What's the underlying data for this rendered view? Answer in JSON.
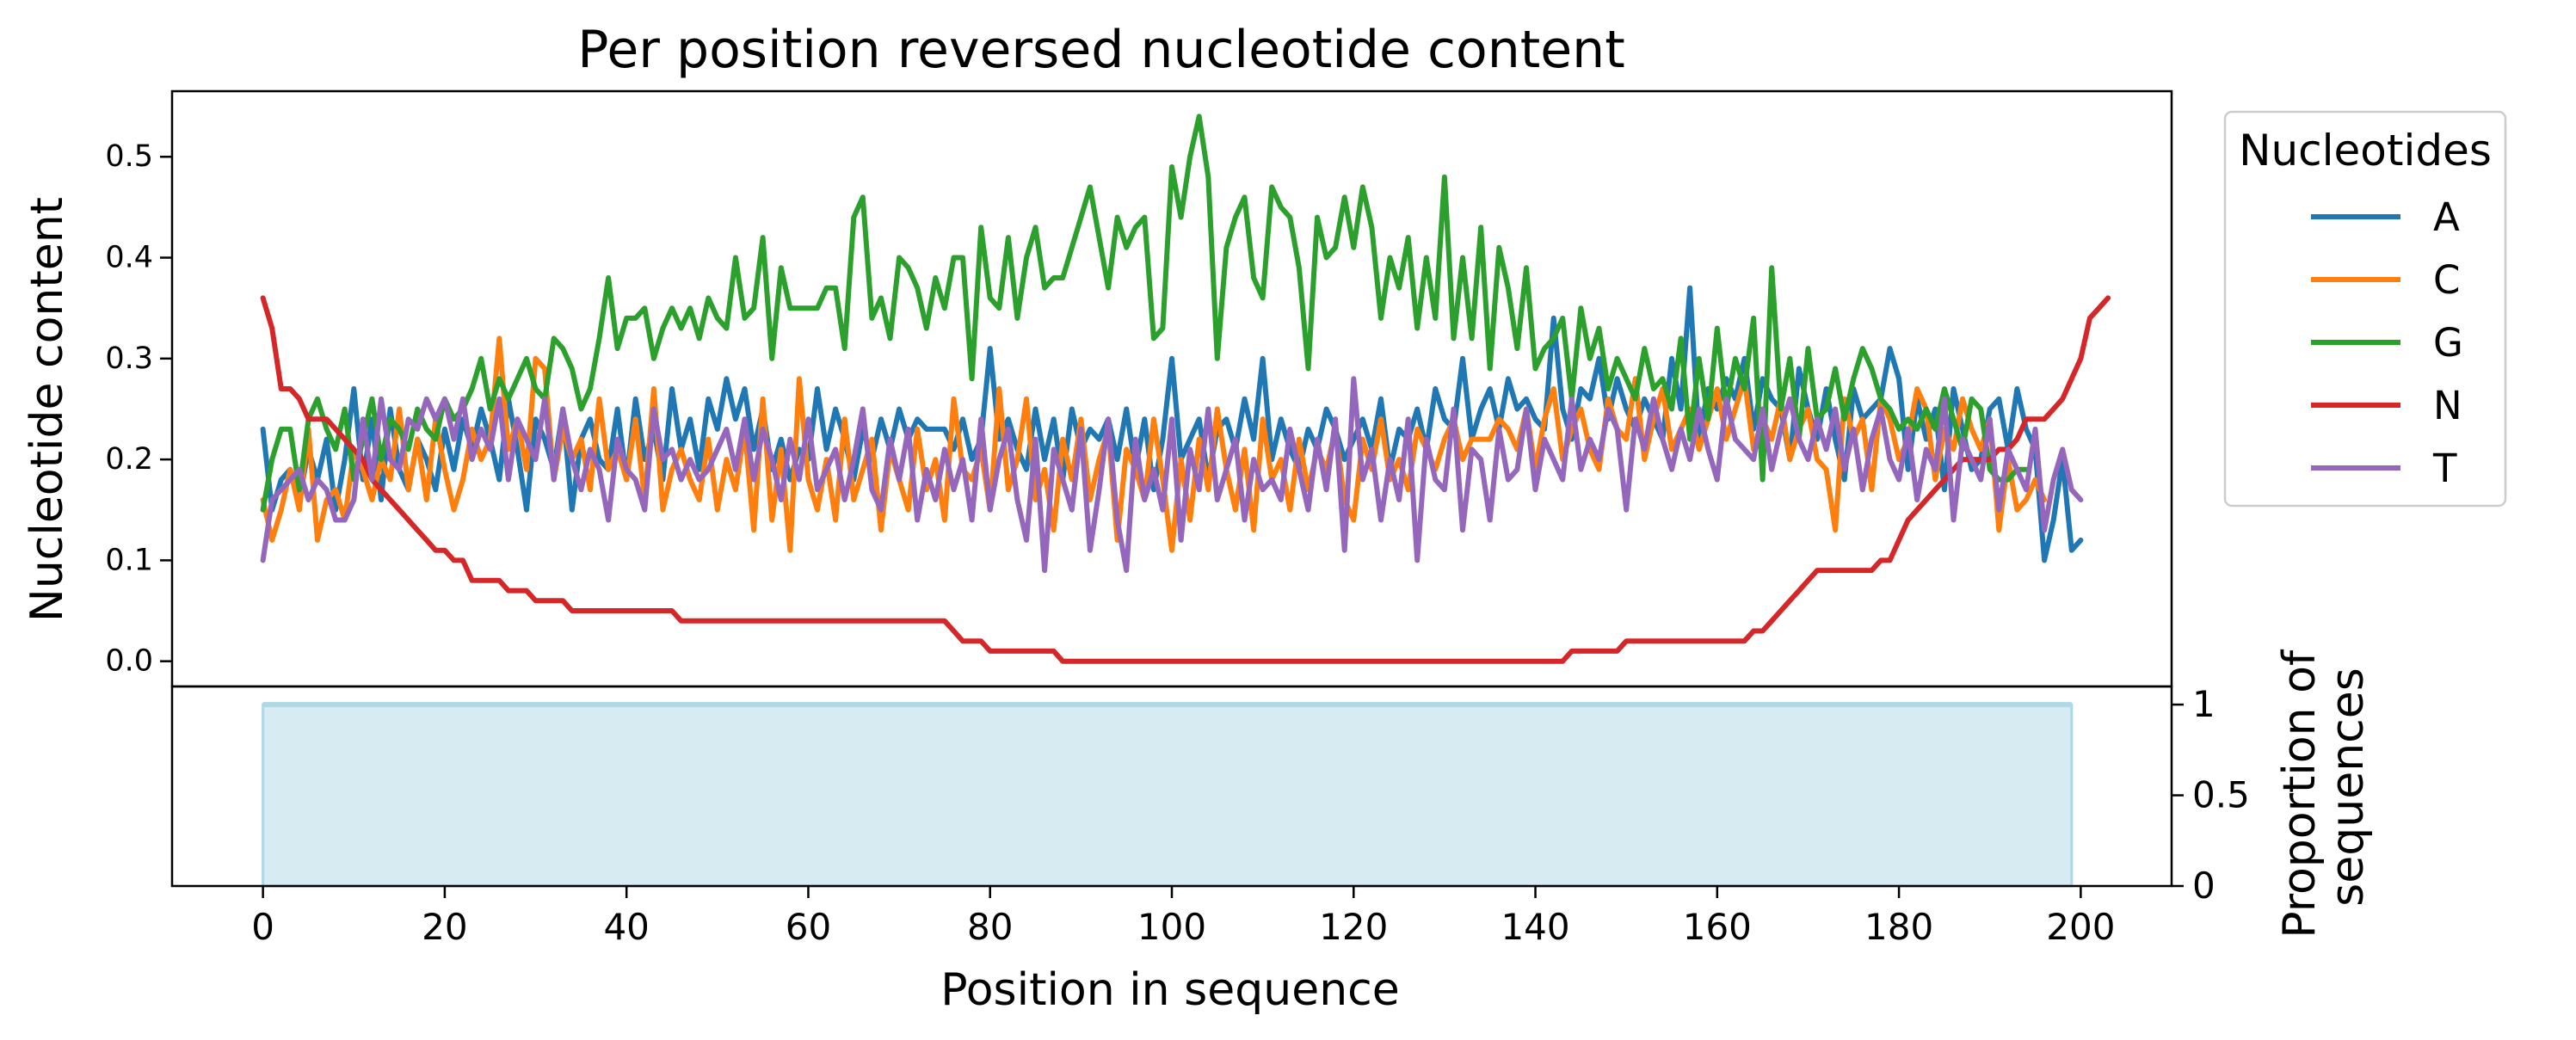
{
  "chart_data": {
    "type": "line",
    "title": "Per position reversed nucleotide content",
    "xlabel": "Position in sequence",
    "ylabel": "Nucleotide content",
    "xlim": [
      -10,
      210
    ],
    "ylim": [
      -0.025,
      0.565
    ],
    "xticks": [
      0,
      20,
      40,
      60,
      80,
      100,
      120,
      140,
      160,
      180,
      200
    ],
    "yticks": [
      "0.0",
      "0.1",
      "0.2",
      "0.3",
      "0.4",
      "0.5"
    ],
    "legend": {
      "title": "Nucleotides",
      "placement": "outside-right"
    },
    "series": [
      {
        "name": "A",
        "color": "#1f77b4",
        "values": [
          0.23,
          0.15,
          0.18,
          0.19,
          0.16,
          0.21,
          0.18,
          0.22,
          0.15,
          0.2,
          0.27,
          0.18,
          0.24,
          0.16,
          0.25,
          0.19,
          0.17,
          0.22,
          0.2,
          0.17,
          0.23,
          0.19,
          0.24,
          0.21,
          0.25,
          0.22,
          0.18,
          0.26,
          0.21,
          0.15,
          0.24,
          0.22,
          0.19,
          0.25,
          0.15,
          0.22,
          0.24,
          0.2,
          0.19,
          0.25,
          0.18,
          0.26,
          0.2,
          0.23,
          0.18,
          0.27,
          0.21,
          0.24,
          0.19,
          0.26,
          0.23,
          0.28,
          0.24,
          0.27,
          0.21,
          0.25,
          0.19,
          0.22,
          0.18,
          0.21,
          0.2,
          0.27,
          0.21,
          0.25,
          0.22,
          0.18,
          0.23,
          0.2,
          0.24,
          0.21,
          0.25,
          0.22,
          0.24,
          0.23,
          0.23,
          0.23,
          0.21,
          0.24,
          0.2,
          0.22,
          0.31,
          0.22,
          0.24,
          0.21,
          0.19,
          0.25,
          0.2,
          0.24,
          0.18,
          0.25,
          0.21,
          0.23,
          0.22,
          0.24,
          0.2,
          0.25,
          0.19,
          0.24,
          0.17,
          0.22,
          0.3,
          0.2,
          0.22,
          0.24,
          0.18,
          0.23,
          0.24,
          0.21,
          0.26,
          0.22,
          0.3,
          0.2,
          0.24,
          0.21,
          0.19,
          0.23,
          0.21,
          0.25,
          0.23,
          0.2,
          0.22,
          0.24,
          0.21,
          0.26,
          0.19,
          0.23,
          0.22,
          0.25,
          0.21,
          0.27,
          0.24,
          0.23,
          0.3,
          0.22,
          0.25,
          0.27,
          0.23,
          0.28,
          0.25,
          0.26,
          0.24,
          0.23,
          0.34,
          0.25,
          0.22,
          0.27,
          0.26,
          0.3,
          0.24,
          0.28,
          0.25,
          0.23,
          0.26,
          0.24,
          0.22,
          0.3,
          0.25,
          0.37,
          0.22,
          0.27,
          0.25,
          0.28,
          0.26,
          0.3,
          0.23,
          0.28,
          0.26,
          0.25,
          0.2,
          0.29,
          0.25,
          0.22,
          0.27,
          0.22,
          0.18,
          0.27,
          0.24,
          0.25,
          0.26,
          0.31,
          0.28,
          0.19,
          0.26,
          0.22,
          0.25,
          0.17,
          0.27,
          0.23,
          0.19,
          0.2,
          0.25,
          0.26,
          0.21,
          0.27,
          0.23,
          0.21,
          0.1,
          0.14,
          0.2,
          0.11,
          0.12
        ]
      },
      {
        "name": "C",
        "color": "#ff7f0e",
        "values": [
          0.16,
          0.12,
          0.15,
          0.19,
          0.15,
          0.23,
          0.12,
          0.16,
          0.17,
          0.14,
          0.21,
          0.19,
          0.16,
          0.2,
          0.18,
          0.25,
          0.17,
          0.22,
          0.16,
          0.24,
          0.19,
          0.15,
          0.18,
          0.23,
          0.2,
          0.22,
          0.32,
          0.21,
          0.24,
          0.19,
          0.3,
          0.29,
          0.18,
          0.23,
          0.2,
          0.22,
          0.17,
          0.26,
          0.19,
          0.21,
          0.18,
          0.24,
          0.16,
          0.27,
          0.15,
          0.19,
          0.21,
          0.18,
          0.16,
          0.22,
          0.15,
          0.2,
          0.17,
          0.23,
          0.13,
          0.26,
          0.14,
          0.21,
          0.11,
          0.28,
          0.18,
          0.15,
          0.2,
          0.14,
          0.24,
          0.16,
          0.19,
          0.22,
          0.13,
          0.21,
          0.18,
          0.15,
          0.23,
          0.17,
          0.2,
          0.14,
          0.26,
          0.19,
          0.18,
          0.21,
          0.15,
          0.27,
          0.17,
          0.2,
          0.26,
          0.16,
          0.19,
          0.13,
          0.22,
          0.18,
          0.24,
          0.16,
          0.2,
          0.23,
          0.12,
          0.21,
          0.19,
          0.16,
          0.24,
          0.18,
          0.11,
          0.2,
          0.14,
          0.22,
          0.17,
          0.25,
          0.19,
          0.15,
          0.21,
          0.13,
          0.24,
          0.18,
          0.2,
          0.15,
          0.22,
          0.17,
          0.21,
          0.19,
          0.23,
          0.16,
          0.14,
          0.22,
          0.19,
          0.24,
          0.18,
          0.2,
          0.17,
          0.23,
          0.21,
          0.19,
          0.22,
          0.24,
          0.2,
          0.22,
          0.22,
          0.22,
          0.24,
          0.23,
          0.21,
          0.25,
          0.19,
          0.24,
          0.27,
          0.2,
          0.23,
          0.25,
          0.21,
          0.19,
          0.26,
          0.23,
          0.22,
          0.28,
          0.2,
          0.24,
          0.27,
          0.21,
          0.23,
          0.25,
          0.21,
          0.24,
          0.27,
          0.22,
          0.25,
          0.28,
          0.21,
          0.24,
          0.22,
          0.26,
          0.2,
          0.23,
          0.25,
          0.2,
          0.19,
          0.13,
          0.26,
          0.22,
          0.24,
          0.17,
          0.26,
          0.24,
          0.2,
          0.22,
          0.27,
          0.25,
          0.18,
          0.23,
          0.21,
          0.26,
          0.23,
          0.21,
          0.24,
          0.13,
          0.2,
          0.15,
          0.16,
          0.18,
          0.16
        ]
      },
      {
        "name": "G",
        "color": "#2ca02c",
        "values": [
          0.15,
          0.2,
          0.23,
          0.23,
          0.17,
          0.24,
          0.26,
          0.23,
          0.21,
          0.25,
          0.18,
          0.22,
          0.26,
          0.2,
          0.24,
          0.23,
          0.21,
          0.25,
          0.23,
          0.22,
          0.26,
          0.24,
          0.25,
          0.27,
          0.3,
          0.25,
          0.28,
          0.26,
          0.28,
          0.3,
          0.27,
          0.26,
          0.32,
          0.31,
          0.29,
          0.25,
          0.27,
          0.32,
          0.38,
          0.31,
          0.34,
          0.34,
          0.35,
          0.3,
          0.33,
          0.35,
          0.33,
          0.35,
          0.32,
          0.36,
          0.34,
          0.33,
          0.4,
          0.34,
          0.35,
          0.42,
          0.3,
          0.39,
          0.35,
          0.35,
          0.35,
          0.35,
          0.37,
          0.37,
          0.31,
          0.44,
          0.46,
          0.34,
          0.36,
          0.32,
          0.4,
          0.39,
          0.37,
          0.33,
          0.38,
          0.35,
          0.4,
          0.4,
          0.28,
          0.43,
          0.36,
          0.35,
          0.42,
          0.34,
          0.4,
          0.43,
          0.37,
          0.38,
          0.38,
          0.41,
          0.44,
          0.47,
          0.42,
          0.37,
          0.44,
          0.41,
          0.43,
          0.44,
          0.32,
          0.33,
          0.49,
          0.44,
          0.5,
          0.54,
          0.48,
          0.3,
          0.41,
          0.44,
          0.46,
          0.38,
          0.36,
          0.47,
          0.45,
          0.44,
          0.39,
          0.29,
          0.44,
          0.4,
          0.41,
          0.46,
          0.41,
          0.47,
          0.43,
          0.34,
          0.4,
          0.37,
          0.42,
          0.33,
          0.4,
          0.34,
          0.48,
          0.32,
          0.4,
          0.32,
          0.43,
          0.29,
          0.41,
          0.37,
          0.31,
          0.39,
          0.29,
          0.31,
          0.32,
          0.34,
          0.26,
          0.35,
          0.3,
          0.33,
          0.27,
          0.3,
          0.28,
          0.26,
          0.31,
          0.27,
          0.28,
          0.25,
          0.32,
          0.22,
          0.3,
          0.24,
          0.33,
          0.25,
          0.3,
          0.27,
          0.34,
          0.18,
          0.39,
          0.25,
          0.3,
          0.22,
          0.31,
          0.24,
          0.25,
          0.29,
          0.24,
          0.28,
          0.31,
          0.29,
          0.26,
          0.25,
          0.23,
          0.24,
          0.23,
          0.25,
          0.23,
          0.27,
          0.24,
          0.21,
          0.26,
          0.25,
          0.19,
          0.18,
          0.18,
          0.19,
          0.19
        ]
      },
      {
        "name": "N",
        "color": "#d62728",
        "values": [
          0.36,
          0.33,
          0.27,
          0.27,
          0.26,
          0.24,
          0.24,
          0.24,
          0.23,
          0.22,
          0.21,
          0.2,
          0.18,
          0.17,
          0.16,
          0.15,
          0.14,
          0.13,
          0.12,
          0.11,
          0.11,
          0.1,
          0.1,
          0.08,
          0.08,
          0.08,
          0.08,
          0.07,
          0.07,
          0.07,
          0.06,
          0.06,
          0.06,
          0.06,
          0.05,
          0.05,
          0.05,
          0.05,
          0.05,
          0.05,
          0.05,
          0.05,
          0.05,
          0.05,
          0.05,
          0.05,
          0.04,
          0.04,
          0.04,
          0.04,
          0.04,
          0.04,
          0.04,
          0.04,
          0.04,
          0.04,
          0.04,
          0.04,
          0.04,
          0.04,
          0.04,
          0.04,
          0.04,
          0.04,
          0.04,
          0.04,
          0.04,
          0.04,
          0.04,
          0.04,
          0.04,
          0.04,
          0.04,
          0.04,
          0.04,
          0.04,
          0.03,
          0.02,
          0.02,
          0.02,
          0.01,
          0.01,
          0.01,
          0.01,
          0.01,
          0.01,
          0.01,
          0.01,
          0.0,
          0.0,
          0.0,
          0.0,
          0.0,
          0.0,
          0.0,
          0.0,
          0.0,
          0.0,
          0.0,
          0.0,
          0.0,
          0.0,
          0.0,
          0.0,
          0.0,
          0.0,
          0.0,
          0.0,
          0.0,
          0.0,
          0.0,
          0.0,
          0.0,
          0.0,
          0.0,
          0.0,
          0.0,
          0.0,
          0.0,
          0.0,
          0.0,
          0.0,
          0.0,
          0.0,
          0.0,
          0.0,
          0.0,
          0.0,
          0.0,
          0.0,
          0.0,
          0.0,
          0.0,
          0.0,
          0.0,
          0.0,
          0.0,
          0.0,
          0.0,
          0.0,
          0.0,
          0.0,
          0.0,
          0.0,
          0.01,
          0.01,
          0.01,
          0.01,
          0.01,
          0.01,
          0.02,
          0.02,
          0.02,
          0.02,
          0.02,
          0.02,
          0.02,
          0.02,
          0.02,
          0.02,
          0.02,
          0.02,
          0.02,
          0.02,
          0.03,
          0.03,
          0.04,
          0.05,
          0.06,
          0.07,
          0.08,
          0.09,
          0.09,
          0.09,
          0.09,
          0.09,
          0.09,
          0.09,
          0.1,
          0.1,
          0.12,
          0.14,
          0.15,
          0.16,
          0.17,
          0.18,
          0.19,
          0.2,
          0.2,
          0.2,
          0.2,
          0.21,
          0.21,
          0.22,
          0.24,
          0.24,
          0.24,
          0.25,
          0.26,
          0.28,
          0.3,
          0.34,
          0.35,
          0.36
        ]
      },
      {
        "name": "T",
        "color": "#9467bd",
        "values": [
          0.1,
          0.16,
          0.17,
          0.18,
          0.19,
          0.16,
          0.18,
          0.17,
          0.14,
          0.14,
          0.16,
          0.24,
          0.18,
          0.26,
          0.2,
          0.19,
          0.24,
          0.23,
          0.26,
          0.24,
          0.26,
          0.22,
          0.26,
          0.2,
          0.23,
          0.21,
          0.26,
          0.18,
          0.24,
          0.22,
          0.2,
          0.26,
          0.18,
          0.25,
          0.2,
          0.17,
          0.21,
          0.19,
          0.14,
          0.22,
          0.19,
          0.18,
          0.15,
          0.25,
          0.2,
          0.21,
          0.18,
          0.2,
          0.18,
          0.19,
          0.21,
          0.23,
          0.19,
          0.24,
          0.18,
          0.23,
          0.2,
          0.16,
          0.22,
          0.18,
          0.24,
          0.17,
          0.19,
          0.21,
          0.16,
          0.2,
          0.25,
          0.17,
          0.15,
          0.22,
          0.18,
          0.23,
          0.14,
          0.19,
          0.16,
          0.21,
          0.17,
          0.2,
          0.14,
          0.24,
          0.15,
          0.2,
          0.23,
          0.16,
          0.12,
          0.22,
          0.09,
          0.21,
          0.18,
          0.15,
          0.23,
          0.11,
          0.17,
          0.24,
          0.14,
          0.09,
          0.22,
          0.16,
          0.19,
          0.15,
          0.24,
          0.12,
          0.21,
          0.17,
          0.25,
          0.16,
          0.19,
          0.22,
          0.14,
          0.2,
          0.17,
          0.18,
          0.16,
          0.23,
          0.19,
          0.15,
          0.22,
          0.17,
          0.24,
          0.11,
          0.28,
          0.18,
          0.21,
          0.14,
          0.2,
          0.16,
          0.24,
          0.1,
          0.22,
          0.18,
          0.17,
          0.25,
          0.13,
          0.21,
          0.2,
          0.14,
          0.23,
          0.18,
          0.19,
          0.25,
          0.17,
          0.22,
          0.2,
          0.18,
          0.26,
          0.19,
          0.22,
          0.2,
          0.25,
          0.23,
          0.15,
          0.24,
          0.21,
          0.26,
          0.22,
          0.19,
          0.23,
          0.2,
          0.25,
          0.21,
          0.18,
          0.26,
          0.22,
          0.21,
          0.2,
          0.25,
          0.19,
          0.23,
          0.26,
          0.22,
          0.2,
          0.24,
          0.21,
          0.25,
          0.19,
          0.23,
          0.17,
          0.22,
          0.25,
          0.2,
          0.18,
          0.23,
          0.16,
          0.21,
          0.19,
          0.26,
          0.14,
          0.22,
          0.2,
          0.18,
          0.24,
          0.15,
          0.21,
          0.19,
          0.17,
          0.23,
          0.13,
          0.18,
          0.21,
          0.17,
          0.16
        ]
      }
    ],
    "proportion": {
      "ylabel": "Proportion of\nsequences",
      "ylim": [
        0,
        1.1
      ],
      "yticks": [
        "0",
        "0.5",
        "1"
      ],
      "value": 1,
      "x_range": [
        0,
        199
      ],
      "color": "#add8e6"
    }
  }
}
